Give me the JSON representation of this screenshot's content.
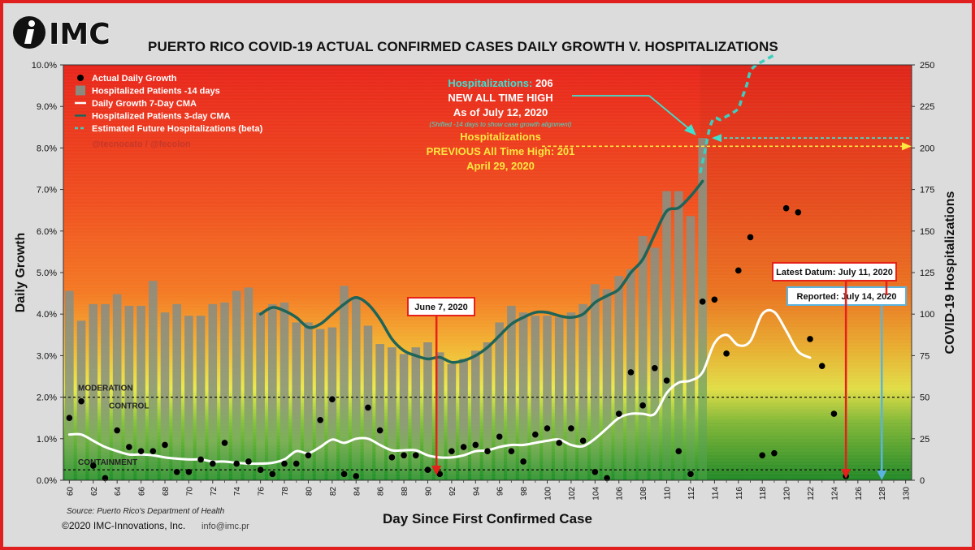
{
  "header": {
    "logo_text": "IMC",
    "title": "PUERTO RICO COVID-19 ACTUAL CONFIRMED CASES DAILY GROWTH V. HOSPITALIZATIONS"
  },
  "footer": {
    "source": "Source: Puerto Rico's Department of Health",
    "copyright": "©2020 IMC-Innovations, Inc.",
    "email": "info@imc.pr"
  },
  "chart_data": {
    "type": "bar",
    "xlabel": "Day Since First Confirmed Case",
    "ylabel": "Daily Growth",
    "y2label": "COVID-19 Hospitalizations",
    "xlim": [
      59.5,
      130.5
    ],
    "ylim": [
      0,
      10
    ],
    "y2lim": [
      0,
      250
    ],
    "x_ticks": [
      60,
      62,
      64,
      66,
      68,
      70,
      72,
      74,
      76,
      78,
      80,
      82,
      84,
      86,
      88,
      90,
      92,
      94,
      96,
      98,
      100,
      102,
      104,
      106,
      108,
      110,
      112,
      114,
      116,
      118,
      120,
      122,
      124,
      126,
      128,
      130
    ],
    "y_ticks": [
      0,
      1,
      2,
      3,
      4,
      5,
      6,
      7,
      8,
      9,
      10
    ],
    "y_tick_labels": [
      "0.0%",
      "1.0%",
      "2.0%",
      "3.0%",
      "4.0%",
      "5.0%",
      "6.0%",
      "7.0%",
      "8.0%",
      "9.0%",
      "10.0%"
    ],
    "y2_ticks": [
      0,
      25,
      50,
      75,
      100,
      125,
      150,
      175,
      200,
      225,
      250
    ],
    "handle": "@tecnocato / @fecolon",
    "colors": {
      "dots": "#000000",
      "bars": "#8a8a7e",
      "cma": "#ffffff",
      "hosp_cma": "#1e6458",
      "future": "#3ccfc0",
      "annot_cyan": "#3ee0d0",
      "annot_yellow": "#ffe640",
      "arrow_red": "#e6201a",
      "arrow_blue": "#5ab4e0"
    },
    "legend": [
      {
        "label": "Actual Daily Growth",
        "marker": "dot"
      },
      {
        "label": "Hospitalized Patients -14 days",
        "marker": "bar"
      },
      {
        "label": "Daily Growth 7-Day CMA",
        "marker": "line-white"
      },
      {
        "label": "Hospitalized Patients 3-day CMA",
        "marker": "line-teal"
      },
      {
        "label": "Estimated Future Hospitalizations (beta)",
        "marker": "dash"
      }
    ],
    "zones": [
      {
        "label": "MODERATION",
        "y": 2.0
      },
      {
        "label": "CONTROL",
        "y": 2.0
      },
      {
        "label": "CONTAINMENT",
        "y": 0.25
      }
    ],
    "hospitalized_bars": {
      "x": [
        60,
        61,
        62,
        63,
        64,
        65,
        66,
        67,
        68,
        69,
        70,
        71,
        72,
        73,
        74,
        75,
        76,
        77,
        78,
        79,
        80,
        81,
        82,
        83,
        84,
        85,
        86,
        87,
        88,
        89,
        90,
        91,
        92,
        93,
        94,
        95,
        96,
        97,
        98,
        99,
        100,
        101,
        102,
        103,
        104,
        105,
        106,
        107,
        108,
        109,
        110,
        111,
        112,
        113
      ],
      "values": [
        114,
        96,
        106,
        106,
        112,
        105,
        105,
        120,
        101,
        106,
        99,
        99,
        106,
        107,
        114,
        116,
        101,
        106,
        107,
        95,
        95,
        91,
        92,
        117,
        110,
        93,
        82,
        80,
        76,
        80,
        83,
        77,
        70,
        73,
        78,
        83,
        95,
        105,
        101,
        99,
        99,
        98,
        101,
        106,
        118,
        115,
        123,
        127,
        147,
        140,
        174,
        174,
        159,
        206
      ]
    },
    "daily_growth": {
      "x": [
        60,
        61,
        62,
        63,
        64,
        65,
        66,
        67,
        68,
        69,
        70,
        71,
        72,
        73,
        74,
        75,
        76,
        77,
        78,
        79,
        80,
        81,
        82,
        83,
        84,
        85,
        86,
        87,
        88,
        89,
        90,
        91,
        92,
        93,
        94,
        95,
        96,
        97,
        98,
        99,
        100,
        101,
        102,
        103,
        104,
        105,
        106,
        107,
        108,
        109,
        110,
        111,
        112,
        113,
        114,
        115,
        116,
        117,
        118,
        119,
        120,
        121,
        122,
        123,
        124,
        125
      ],
      "values": [
        1.5,
        1.9,
        0.35,
        0.05,
        1.2,
        0.8,
        0.7,
        0.7,
        0.85,
        0.2,
        0.2,
        0.5,
        0.4,
        0.9,
        0.4,
        0.45,
        0.25,
        0.15,
        0.4,
        0.4,
        0.6,
        1.45,
        1.95,
        0.15,
        0.1,
        1.75,
        1.2,
        0.55,
        0.6,
        0.6,
        0.25,
        0.15,
        0.7,
        0.8,
        0.85,
        0.7,
        1.05,
        0.7,
        0.45,
        1.1,
        1.25,
        0.9,
        1.25,
        0.95,
        0.2,
        0.05,
        1.6,
        2.6,
        1.8,
        2.7,
        2.4,
        0.7,
        0.15,
        4.3,
        4.35,
        3.05,
        5.05,
        5.85,
        0.6,
        0.65,
        6.55,
        6.45,
        3.4,
        2.75,
        1.6,
        0.1
      ]
    },
    "daily_growth_cma": {
      "x": [
        60,
        61,
        62,
        63,
        64,
        65,
        66,
        67,
        68,
        69,
        70,
        71,
        72,
        73,
        74,
        75,
        76,
        77,
        78,
        79,
        80,
        81,
        82,
        83,
        84,
        85,
        86,
        87,
        88,
        89,
        90,
        91,
        92,
        93,
        94,
        95,
        96,
        97,
        98,
        99,
        100,
        101,
        102,
        103,
        104,
        105,
        106,
        107,
        108,
        109,
        110,
        111,
        112,
        113,
        114,
        115,
        116,
        117,
        118,
        119,
        120,
        121,
        122
      ],
      "values": [
        1.1,
        1.1,
        0.95,
        0.8,
        0.7,
        0.62,
        0.62,
        0.6,
        0.55,
        0.52,
        0.5,
        0.5,
        0.45,
        0.45,
        0.42,
        0.4,
        0.4,
        0.42,
        0.5,
        0.7,
        0.65,
        0.8,
        0.98,
        0.9,
        1.0,
        1.0,
        0.85,
        0.72,
        0.72,
        0.72,
        0.6,
        0.55,
        0.55,
        0.6,
        0.7,
        0.72,
        0.8,
        0.85,
        0.85,
        0.9,
        0.95,
        0.98,
        0.85,
        0.82,
        1.0,
        1.25,
        1.5,
        1.6,
        1.6,
        1.6,
        2.1,
        2.35,
        2.4,
        2.6,
        3.3,
        3.5,
        3.25,
        3.35,
        4.0,
        4.05,
        3.6,
        3.1,
        2.95
      ]
    },
    "hosp_cma": {
      "x": [
        76,
        77,
        78,
        79,
        80,
        81,
        82,
        83,
        84,
        85,
        86,
        87,
        88,
        89,
        90,
        91,
        92,
        93,
        94,
        95,
        96,
        97,
        98,
        99,
        100,
        101,
        102,
        103,
        104,
        105,
        106,
        107,
        108,
        109,
        110,
        111,
        112,
        113
      ],
      "values": [
        100,
        104,
        102,
        98,
        92,
        94,
        100,
        106,
        110,
        106,
        97,
        85,
        78,
        75,
        73,
        74,
        71,
        72,
        75,
        80,
        87,
        94,
        98,
        101,
        101,
        99,
        98,
        100,
        107,
        111,
        115,
        125,
        133,
        148,
        162,
        164,
        171,
        180
      ]
    },
    "future_hosp": {
      "x": [
        112.8,
        113.2,
        113.6,
        114,
        114.5,
        115,
        115.5,
        116,
        116.3,
        116.7,
        117,
        117.5,
        118,
        118.5,
        119
      ],
      "values": [
        185,
        198,
        212,
        218,
        217,
        219,
        221,
        224,
        230,
        238,
        246,
        250,
        252,
        254,
        256
      ]
    },
    "annotations": {
      "hosp_label": "Hospitalizations: ",
      "hosp_value": "206",
      "new_high": "NEW ALL TIME HIGH",
      "as_of": "As of July 12, 2020",
      "shifted": "(Shifted -14 days to show case growth alignment)",
      "prev_label": "Hospitalizations",
      "prev_high": "PREVIOUS All Time High: 201",
      "prev_date": "April 29, 2020",
      "prev_high_value": 201,
      "new_high_value": 206,
      "june7": {
        "label": "June 7, 2020",
        "x": 91
      },
      "latest": {
        "label": "Latest Datum: July 11, 2020",
        "x": 125
      },
      "reported": {
        "label": "Reported: July 14, 2020",
        "x": 128
      }
    }
  }
}
